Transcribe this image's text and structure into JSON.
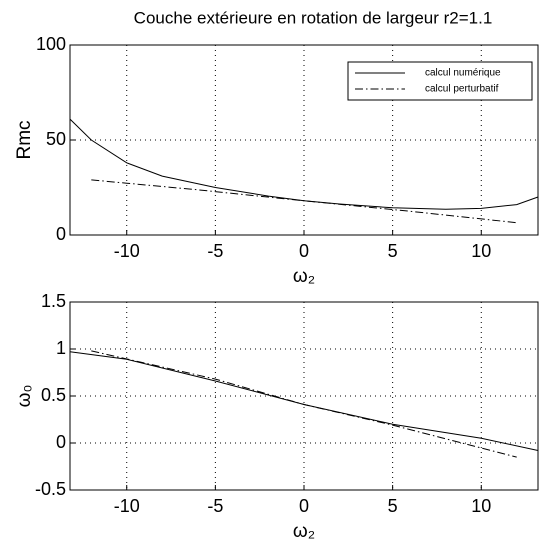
{
  "chart_data": [
    {
      "type": "line",
      "title": "Couche extérieure en rotation de largeur r2=1.1",
      "x_label": "ω₂",
      "y_label": "Rmc",
      "xlim": [
        -13.2,
        13.2
      ],
      "xticks": [
        -10,
        -5,
        0,
        5,
        10
      ],
      "ylim": [
        0,
        100
      ],
      "yticks": [
        0,
        50,
        100
      ],
      "grid": true,
      "legend": "upper right",
      "series": [
        {
          "name": "calcul numérique",
          "color": "#000000",
          "dash": "solid",
          "x": [
            -13.2,
            -12,
            -10,
            -8,
            -5,
            -2,
            0,
            2,
            5,
            8,
            10,
            12,
            13.2
          ],
          "values": [
            61,
            50,
            38,
            31,
            25,
            20.5,
            18,
            16.3,
            14.3,
            13.5,
            14,
            16,
            20
          ]
        },
        {
          "name": "calcul perturbatif",
          "color": "#000000",
          "dash": "dashdot",
          "x": [
            -12,
            -6,
            0,
            6,
            12
          ],
          "values": [
            29,
            23.8,
            18,
            12.5,
            6.5
          ]
        }
      ]
    },
    {
      "type": "line",
      "x_label": "ω₂",
      "y_label": "ω₀",
      "xlim": [
        -13.2,
        13.2
      ],
      "xticks": [
        -10,
        -5,
        0,
        5,
        10
      ],
      "ylim": [
        -0.5,
        1.5
      ],
      "yticks": [
        -0.5,
        0,
        0.5,
        1,
        1.5
      ],
      "grid": true,
      "series": [
        {
          "color": "#000000",
          "dash": "solid",
          "x": [
            -13.2,
            -10,
            -5,
            0,
            5,
            10,
            13.2
          ],
          "values": [
            0.97,
            0.89,
            0.66,
            0.41,
            0.2,
            0.05,
            -0.08
          ]
        },
        {
          "color": "#000000",
          "dash": "dashdot",
          "x": [
            -12,
            -5,
            0,
            5,
            12
          ],
          "values": [
            0.98,
            0.68,
            0.41,
            0.19,
            -0.15
          ]
        }
      ]
    }
  ]
}
